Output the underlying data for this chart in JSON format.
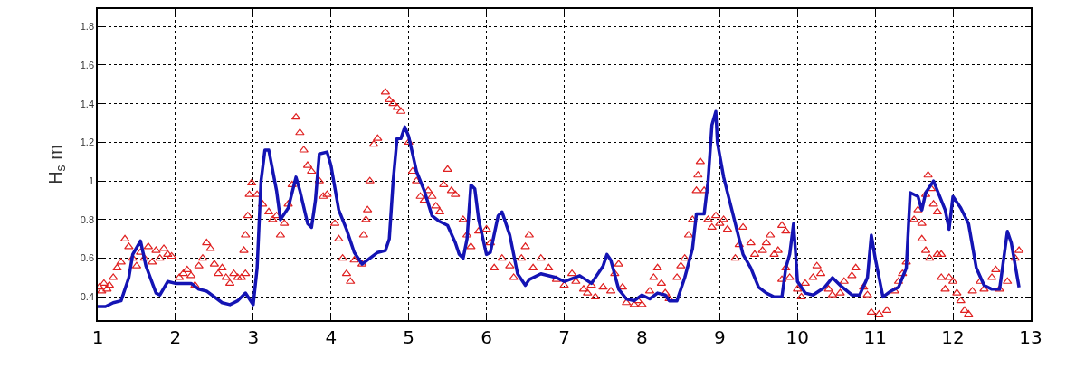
{
  "chart_data": {
    "type": "line",
    "ylabel": "H$_{s}$ m",
    "xlim": [
      1,
      13
    ],
    "xticks": [
      1,
      2,
      3,
      4,
      5,
      6,
      7,
      8,
      9,
      10,
      11,
      12,
      13
    ],
    "ylim": [
      0.28,
      1.89
    ],
    "yticks": [
      0.4,
      0.6,
      0.8,
      1,
      1.2,
      1.4,
      1.6,
      1.8
    ],
    "grid": true,
    "series": [
      {
        "type": "scatter",
        "marker": "triangle",
        "color": "#e02020",
        "x": [
          1.02,
          1.05,
          1.08,
          1.12,
          1.15,
          1.2,
          1.25,
          1.3,
          1.35,
          1.4,
          1.45,
          1.5,
          1.55,
          1.6,
          1.65,
          1.7,
          1.75,
          1.8,
          1.85,
          1.9,
          1.95,
          2.05,
          2.1,
          2.15,
          2.2,
          2.25,
          2.3,
          2.35,
          2.4,
          2.45,
          2.5,
          2.55,
          2.6,
          2.65,
          2.7,
          2.75,
          2.8,
          2.85,
          2.9,
          2.88,
          2.9,
          2.93,
          2.95,
          2.98,
          3.05,
          3.12,
          3.2,
          3.25,
          3.3,
          3.4,
          3.35,
          3.45,
          3.5,
          3.55,
          3.6,
          3.65,
          3.7,
          3.75,
          3.85,
          3.9,
          3.95,
          4.05,
          4.1,
          4.15,
          4.2,
          4.25,
          4.3,
          4.4,
          4.42,
          4.45,
          4.47,
          4.5,
          4.55,
          4.6,
          4.7,
          4.75,
          4.8,
          4.85,
          4.9,
          5.0,
          5.05,
          5.1,
          5.15,
          5.2,
          5.25,
          5.3,
          5.35,
          5.4,
          5.45,
          5.5,
          5.55,
          5.6,
          5.7,
          5.75,
          5.8,
          5.9,
          6.0,
          6.05,
          6.1,
          6.2,
          6.3,
          6.35,
          6.45,
          6.5,
          6.55,
          6.6,
          6.7,
          6.8,
          6.9,
          7.0,
          7.1,
          7.15,
          7.25,
          7.3,
          7.35,
          7.4,
          7.5,
          7.6,
          7.65,
          7.7,
          7.75,
          7.8,
          7.9,
          7.95,
          8.0,
          8.1,
          8.15,
          8.2,
          8.25,
          8.3,
          8.35,
          8.45,
          8.5,
          8.55,
          8.6,
          8.65,
          8.7,
          8.72,
          8.75,
          8.8,
          8.85,
          8.9,
          8.95,
          9.0,
          9.05,
          9.1,
          9.2,
          9.25,
          9.3,
          9.4,
          9.45,
          9.55,
          9.6,
          9.65,
          9.7,
          9.75,
          9.8,
          9.85,
          9.8,
          9.85,
          9.9,
          10.0,
          10.05,
          10.1,
          10.2,
          10.25,
          10.3,
          10.4,
          10.45,
          10.55,
          10.6,
          10.7,
          10.75,
          10.85,
          10.9,
          10.95,
          11.05,
          11.15,
          11.25,
          11.3,
          11.35,
          11.4,
          11.5,
          11.55,
          11.6,
          11.65,
          11.68,
          11.72,
          11.75,
          11.8,
          11.6,
          11.65,
          11.7,
          11.8,
          11.85,
          11.85,
          11.9,
          11.95,
          12.0,
          12.05,
          12.1,
          12.15,
          12.2,
          12.25,
          12.35,
          12.4,
          12.5,
          12.55,
          12.6,
          12.7,
          12.8,
          12.85
        ],
        "values": [
          0.45,
          0.43,
          0.47,
          0.44,
          0.46,
          0.5,
          0.55,
          0.58,
          0.7,
          0.66,
          0.6,
          0.56,
          0.63,
          0.6,
          0.66,
          0.58,
          0.64,
          0.6,
          0.65,
          0.62,
          0.61,
          0.5,
          0.52,
          0.54,
          0.51,
          0.46,
          0.56,
          0.6,
          0.68,
          0.65,
          0.57,
          0.52,
          0.55,
          0.5,
          0.47,
          0.52,
          0.5,
          0.5,
          0.52,
          0.64,
          0.72,
          0.82,
          0.93,
          0.99,
          0.93,
          0.88,
          0.84,
          0.8,
          0.82,
          0.78,
          0.72,
          0.88,
          0.98,
          1.33,
          1.25,
          1.16,
          1.08,
          1.05,
          1.0,
          0.92,
          0.93,
          0.78,
          0.7,
          0.6,
          0.52,
          0.48,
          0.59,
          0.57,
          0.72,
          0.8,
          0.85,
          1.0,
          1.19,
          1.22,
          1.46,
          1.42,
          1.4,
          1.38,
          1.36,
          1.2,
          1.05,
          1.0,
          0.92,
          0.9,
          0.95,
          0.92,
          0.87,
          0.84,
          0.98,
          1.06,
          0.95,
          0.93,
          0.8,
          0.72,
          0.66,
          0.74,
          0.75,
          0.68,
          0.55,
          0.6,
          0.56,
          0.5,
          0.6,
          0.66,
          0.72,
          0.55,
          0.6,
          0.55,
          0.49,
          0.46,
          0.52,
          0.48,
          0.44,
          0.42,
          0.46,
          0.4,
          0.45,
          0.43,
          0.52,
          0.57,
          0.45,
          0.37,
          0.36,
          0.38,
          0.36,
          0.43,
          0.5,
          0.55,
          0.47,
          0.42,
          0.39,
          0.5,
          0.56,
          0.6,
          0.72,
          0.8,
          0.95,
          1.03,
          1.1,
          0.95,
          0.8,
          0.76,
          0.82,
          0.78,
          0.8,
          0.75,
          0.6,
          0.67,
          0.76,
          0.68,
          0.62,
          0.64,
          0.68,
          0.72,
          0.62,
          0.64,
          0.77,
          0.74,
          0.49,
          0.55,
          0.5,
          0.44,
          0.4,
          0.47,
          0.5,
          0.56,
          0.52,
          0.44,
          0.41,
          0.42,
          0.48,
          0.51,
          0.55,
          0.45,
          0.41,
          0.32,
          0.31,
          0.33,
          0.43,
          0.48,
          0.52,
          0.58,
          0.8,
          0.85,
          0.78,
          0.93,
          1.03,
          0.96,
          0.88,
          0.84,
          0.7,
          0.64,
          0.6,
          0.62,
          0.62,
          0.5,
          0.44,
          0.5,
          0.48,
          0.42,
          0.38,
          0.33,
          0.31,
          0.43,
          0.48,
          0.44,
          0.5,
          0.54,
          0.44,
          0.48,
          0.6,
          0.64
        ]
      },
      {
        "color": "#1414b4",
        "line_style": "solid",
        "x": [
          1.0,
          1.1,
          1.2,
          1.3,
          1.4,
          1.45,
          1.55,
          1.62,
          1.75,
          1.8,
          1.9,
          2.0,
          2.2,
          2.3,
          2.4,
          2.6,
          2.7,
          2.8,
          2.9,
          3.0,
          3.05,
          3.1,
          3.15,
          3.2,
          3.3,
          3.35,
          3.45,
          3.55,
          3.6,
          3.7,
          3.75,
          3.8,
          3.85,
          3.95,
          4.0,
          4.1,
          4.2,
          4.3,
          4.4,
          4.5,
          4.6,
          4.7,
          4.75,
          4.8,
          4.85,
          4.9,
          4.95,
          5.0,
          5.1,
          5.2,
          5.3,
          5.4,
          5.5,
          5.6,
          5.65,
          5.7,
          5.75,
          5.8,
          5.85,
          5.9,
          6.0,
          6.05,
          6.15,
          6.2,
          6.3,
          6.4,
          6.5,
          6.55,
          6.7,
          6.9,
          7.0,
          7.2,
          7.35,
          7.5,
          7.55,
          7.6,
          7.7,
          7.8,
          7.9,
          8.0,
          8.1,
          8.2,
          8.3,
          8.35,
          8.45,
          8.55,
          8.65,
          8.7,
          8.8,
          8.85,
          8.9,
          8.95,
          8.97,
          9.05,
          9.2,
          9.3,
          9.4,
          9.5,
          9.6,
          9.7,
          9.8,
          9.85,
          9.9,
          9.95,
          10.0,
          10.1,
          10.2,
          10.35,
          10.45,
          10.55,
          10.7,
          10.8,
          10.9,
          10.95,
          11.0,
          11.1,
          11.2,
          11.3,
          11.35,
          11.4,
          11.45,
          11.55,
          11.6,
          11.65,
          11.75,
          11.8,
          11.9,
          11.95,
          12.0,
          12.1,
          12.2,
          12.3,
          12.4,
          12.5,
          12.6,
          12.7,
          12.75,
          12.85
        ],
        "values": [
          0.35,
          0.35,
          0.37,
          0.38,
          0.5,
          0.62,
          0.69,
          0.56,
          0.42,
          0.41,
          0.48,
          0.47,
          0.47,
          0.44,
          0.43,
          0.37,
          0.36,
          0.38,
          0.42,
          0.36,
          0.55,
          1.0,
          1.16,
          1.16,
          0.95,
          0.8,
          0.86,
          1.02,
          0.95,
          0.78,
          0.76,
          0.9,
          1.14,
          1.15,
          1.08,
          0.85,
          0.75,
          0.63,
          0.57,
          0.6,
          0.63,
          0.64,
          0.7,
          1.0,
          1.22,
          1.22,
          1.28,
          1.23,
          1.05,
          0.95,
          0.82,
          0.79,
          0.77,
          0.68,
          0.62,
          0.6,
          0.7,
          0.98,
          0.96,
          0.8,
          0.62,
          0.63,
          0.82,
          0.84,
          0.72,
          0.52,
          0.46,
          0.49,
          0.52,
          0.5,
          0.48,
          0.51,
          0.47,
          0.56,
          0.62,
          0.59,
          0.44,
          0.39,
          0.38,
          0.41,
          0.39,
          0.42,
          0.41,
          0.38,
          0.38,
          0.5,
          0.65,
          0.83,
          0.83,
          1.0,
          1.29,
          1.36,
          1.2,
          1.02,
          0.78,
          0.62,
          0.55,
          0.45,
          0.42,
          0.4,
          0.4,
          0.55,
          0.62,
          0.78,
          0.48,
          0.42,
          0.41,
          0.45,
          0.5,
          0.46,
          0.41,
          0.41,
          0.5,
          0.72,
          0.6,
          0.4,
          0.43,
          0.45,
          0.5,
          0.55,
          0.94,
          0.92,
          0.85,
          0.94,
          1.0,
          0.95,
          0.85,
          0.75,
          0.92,
          0.86,
          0.78,
          0.55,
          0.46,
          0.44,
          0.44,
          0.74,
          0.68,
          0.45
        ]
      }
    ]
  }
}
